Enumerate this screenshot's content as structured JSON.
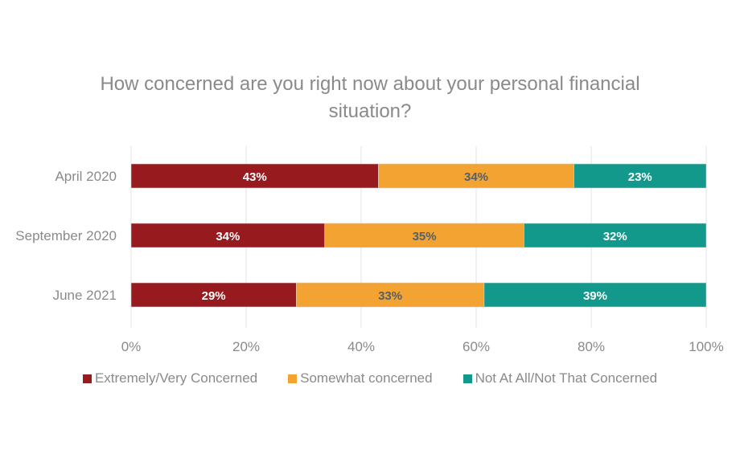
{
  "chart_data": {
    "type": "bar",
    "orientation": "horizontal",
    "stacked": "100%",
    "title": "How concerned are you right now about your personal financial situation?",
    "title_lines": [
      "How concerned are you right now about your personal financial",
      "situation?"
    ],
    "categories": [
      "April 2020",
      "September 2020",
      "June 2021"
    ],
    "series": [
      {
        "name": "Extremely/Very Concerned",
        "values": [
          43,
          34,
          29
        ],
        "labels": [
          "43%",
          "34%",
          "29%"
        ],
        "color": "#971b1e",
        "label_color": "#ffffff"
      },
      {
        "name": "Somewhat concerned",
        "values": [
          34,
          35,
          33
        ],
        "labels": [
          "34%",
          "35%",
          "33%"
        ],
        "color": "#f3a332",
        "label_color": "#555f6a"
      },
      {
        "name": "Not At All/Not That Concerned",
        "values": [
          23,
          32,
          39
        ],
        "labels": [
          "23%",
          "32%",
          "39%"
        ],
        "color": "#12998c",
        "label_color": "#ffffff"
      }
    ],
    "xlim": [
      0,
      100
    ],
    "x_ticks": [
      "0%",
      "20%",
      "40%",
      "60%",
      "80%",
      "100%"
    ],
    "grid": true,
    "legend_position": "bottom"
  }
}
